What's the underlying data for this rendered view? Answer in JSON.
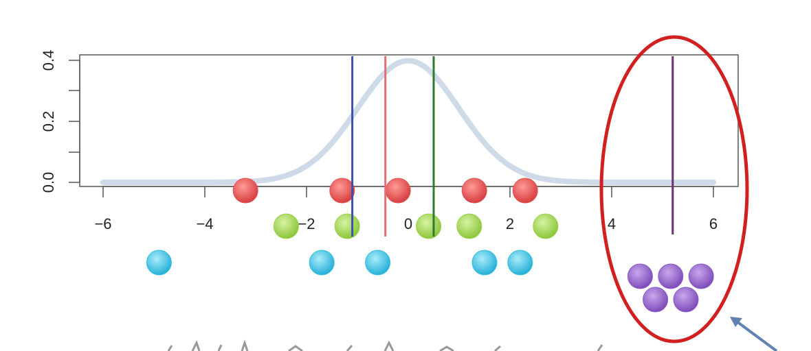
{
  "chart_data": {
    "type": "line",
    "title": "",
    "xlabel": "",
    "ylabel": "",
    "xlim": [
      -6.3,
      6.5
    ],
    "ylim": [
      -0.015,
      0.43
    ],
    "x_ticks": [
      -6,
      -4,
      -2,
      0,
      2,
      4,
      6
    ],
    "x_tick_labels": [
      "−6",
      "−4",
      "−2",
      "0",
      "2",
      "4",
      "6"
    ],
    "y_ticks": [
      0.0,
      0.2,
      0.4
    ],
    "y_tick_labels": [
      "0.0",
      "0.2",
      "0.4"
    ],
    "density_curve": {
      "distribution": "normal",
      "mean": 0,
      "sd": 1,
      "x_range": [
        -6,
        6
      ],
      "color": "#c9d6e6"
    },
    "vertical_lines": [
      {
        "x": -1.1,
        "color": "#3b4fb0"
      },
      {
        "x": -0.45,
        "color": "#e26d72"
      },
      {
        "x": 0.5,
        "color": "#2f7a2f"
      },
      {
        "x": 5.2,
        "color": "#6b2f73"
      }
    ],
    "sample_rows": [
      {
        "color": "#e25555",
        "row": 0,
        "x": [
          -3.2,
          -1.3,
          -0.2,
          1.3,
          2.3
        ]
      },
      {
        "color": "#9cd24d",
        "row": 1,
        "x": [
          -2.4,
          -1.2,
          0.4,
          1.2,
          2.7
        ]
      },
      {
        "color": "#36bfe0",
        "row": 2,
        "x": [
          -4.9,
          -1.7,
          -0.6,
          1.5,
          2.2
        ]
      }
    ],
    "highlight_points": {
      "color": "#8d5cc7",
      "x": [
        4.6,
        5.2,
        5.8,
        4.9,
        5.5
      ]
    },
    "highlight_ellipse_color": "#d22020",
    "arrow_color": "#5f82b3"
  }
}
